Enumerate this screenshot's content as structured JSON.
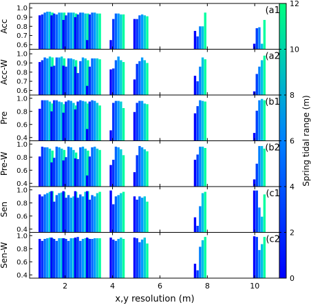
{
  "chart_data": {
    "type": "bar",
    "xlabel": "x,y resolution (m)",
    "xlim": [
      0.5,
      11.3
    ],
    "xticks": [
      2,
      4,
      6,
      8,
      10
    ],
    "x_positions": [
      1.2,
      1.7,
      2.2,
      2.7,
      3.2,
      4.2,
      5.2,
      7.7,
      10.2
    ],
    "colorbar": {
      "label": "Spring tidal range (m)",
      "range": [
        0,
        12
      ],
      "ticks": [
        0,
        2,
        4,
        6,
        8,
        10,
        12
      ]
    },
    "group_colors": [
      "#0000ff",
      "#0055ff",
      "#00aaff",
      "#00ffa0"
    ],
    "panels": [
      {
        "id": "a1",
        "ylabel": "Acc",
        "tag": "(a1)",
        "ylim": [
          0.55,
          1.05
        ],
        "yticks": [
          "1.0",
          "0.9",
          "0.8",
          "0.7",
          "0.6"
        ],
        "groups": [
          [
            0.92,
            0.93,
            0.95,
            0.96,
            0.96,
            0.95
          ],
          [
            0.92,
            0.94,
            0.93,
            0.95,
            0.95,
            0.95
          ],
          [
            0.87,
            0.92,
            0.95,
            0.95,
            0.95,
            0.94
          ],
          [
            0.9,
            0.93,
            0.95,
            0.95,
            0.94,
            0.94
          ],
          [
            0.65,
            0.93,
            0.95,
            0.95,
            0.94,
            0.94
          ],
          [
            0.65,
            0.88,
            0.94,
            0.94,
            0.93,
            0.93
          ],
          [
            0.88,
            0.88,
            0.92,
            0.93,
            0.92,
            0.91
          ],
          [
            0.75,
            0.69,
            0.8,
            0.8,
            0.95
          ],
          [
            0.61,
            0.78,
            0.79,
            0.61,
            0.87
          ]
        ]
      },
      {
        "id": "a2",
        "ylabel": "Acc-W",
        "tag": "(a2)",
        "ylim": [
          0.55,
          1.05
        ],
        "yticks": [
          "1.0",
          "0.9",
          "0.8",
          "0.7",
          "0.6"
        ],
        "groups": [
          [
            0.91,
            0.93,
            0.96,
            0.95,
            0.97,
            0.96
          ],
          [
            0.86,
            0.87,
            0.96,
            0.96,
            0.97,
            0.95
          ],
          [
            0.87,
            0.86,
            0.95,
            0.95,
            0.94,
            0.93
          ],
          [
            0.86,
            0.79,
            0.92,
            0.96,
            0.95,
            0.93
          ],
          [
            0.65,
            0.86,
            0.95,
            0.95,
            0.95,
            0.94
          ],
          [
            0.83,
            0.84,
            0.93,
            0.97,
            0.93,
            0.91
          ],
          [
            0.72,
            0.89,
            0.92,
            0.96,
            0.93,
            0.9
          ],
          [
            0.76,
            0.7,
            0.86,
            0.96,
            0.94
          ],
          [
            0.59,
            0.78,
            0.86,
            0.93,
            0.98
          ]
        ]
      },
      {
        "id": "b1",
        "ylabel": "Pre",
        "tag": "(b1)",
        "ylim": [
          0.35,
          1.05
        ],
        "yticks": [
          "1.0",
          "0.8",
          "0.6",
          "0.4"
        ],
        "groups": [
          [
            0.84,
            0.97,
            0.97,
            0.97,
            0.95,
            0.92
          ],
          [
            0.8,
            0.97,
            0.97,
            0.95,
            0.94,
            0.91
          ],
          [
            0.78,
            0.95,
            0.97,
            0.96,
            0.93,
            0.89
          ],
          [
            0.83,
            0.95,
            0.97,
            0.96,
            0.95,
            0.92
          ],
          [
            0.53,
            0.95,
            0.97,
            0.96,
            0.93,
            0.89
          ],
          [
            0.51,
            0.93,
            0.96,
            0.96,
            0.95,
            0.85
          ],
          [
            0.79,
            0.93,
            0.96,
            0.96,
            0.92,
            0.91
          ],
          [
            0.77,
            0.88,
            0.97,
            0.96,
            0.95
          ],
          [
            0.47,
            0.81,
            0.97,
            0.99,
            0.97
          ]
        ]
      },
      {
        "id": "b2",
        "ylabel": "Pre-W",
        "tag": "(b2)",
        "ylim": [
          0.35,
          1.05
        ],
        "yticks": [
          "1.0",
          "0.8",
          "0.6",
          "0.4"
        ],
        "groups": [
          [
            0.81,
            0.96,
            0.95,
            0.95,
            0.93,
            0.9
          ],
          [
            0.72,
            0.79,
            0.96,
            0.95,
            0.93,
            0.91
          ],
          [
            0.75,
            0.8,
            0.96,
            0.95,
            0.91,
            0.87
          ],
          [
            0.78,
            0.77,
            0.95,
            0.96,
            0.93,
            0.9
          ],
          [
            0.52,
            0.81,
            0.95,
            0.96,
            0.93,
            0.91
          ],
          [
            0.68,
            0.76,
            0.96,
            0.95,
            0.92,
            0.83
          ],
          [
            0.57,
            0.83,
            0.97,
            0.95,
            0.92,
            0.89
          ],
          [
            0.76,
            0.84,
            0.96,
            0.96,
            0.94
          ],
          [
            0.46,
            0.7,
            0.97,
            0.97,
            0.93
          ]
        ]
      },
      {
        "id": "c1",
        "ylabel": "Sen",
        "tag": "(c1)",
        "ylim": [
          0.35,
          1.05
        ],
        "yticks": [
          "1.0",
          "0.8",
          "0.6",
          "0.4"
        ],
        "groups": [
          [
            0.93,
            0.9,
            0.93,
            0.95,
            0.97,
            0.98
          ],
          [
            0.98,
            0.82,
            0.92,
            0.95,
            0.96,
            0.97
          ],
          [
            0.98,
            0.88,
            0.92,
            0.88,
            0.9,
            0.97
          ],
          [
            0.98,
            0.88,
            0.93,
            0.9,
            0.97,
            0.98
          ],
          [
            0.98,
            0.85,
            0.92,
            0.9,
            0.95,
            0.97
          ],
          [
            0.99,
            0.78,
            0.9,
            0.92,
            0.95,
            0.97
          ],
          [
            0.9,
            0.85,
            0.9,
            0.88,
            0.9,
            0.82
          ],
          [
            0.58,
            0.45,
            0.75,
            0.95,
            0.97
          ],
          [
            0.99,
            0.99,
            0.73,
            0.59,
            0.93
          ]
        ]
      },
      {
        "id": "c2",
        "ylabel": "Sen-W",
        "tag": "(c2)",
        "ylim": [
          0.35,
          1.05
        ],
        "yticks": [
          "1.0",
          "0.8",
          "0.6",
          "0.4"
        ],
        "groups": [
          [
            0.95,
            0.92,
            0.95,
            0.96,
            0.97,
            0.96
          ],
          [
            0.97,
            0.95,
            0.92,
            0.96,
            0.96,
            0.96
          ],
          [
            0.96,
            0.95,
            0.92,
            0.96,
            0.96,
            0.95
          ],
          [
            0.97,
            0.98,
            0.92,
            0.95,
            0.96,
            0.96
          ],
          [
            0.97,
            0.95,
            0.95,
            0.96,
            0.96,
            0.96
          ],
          [
            0.97,
            0.94,
            0.92,
            0.95,
            0.97,
            0.95
          ],
          [
            0.97,
            0.96,
            0.9,
            0.94,
            0.97,
            0.88
          ],
          [
            0.57,
            0.47,
            0.83,
            0.93,
            0.98
          ],
          [
            0.99,
            0.98,
            0.78,
            0.87,
            0.98
          ]
        ]
      }
    ]
  }
}
